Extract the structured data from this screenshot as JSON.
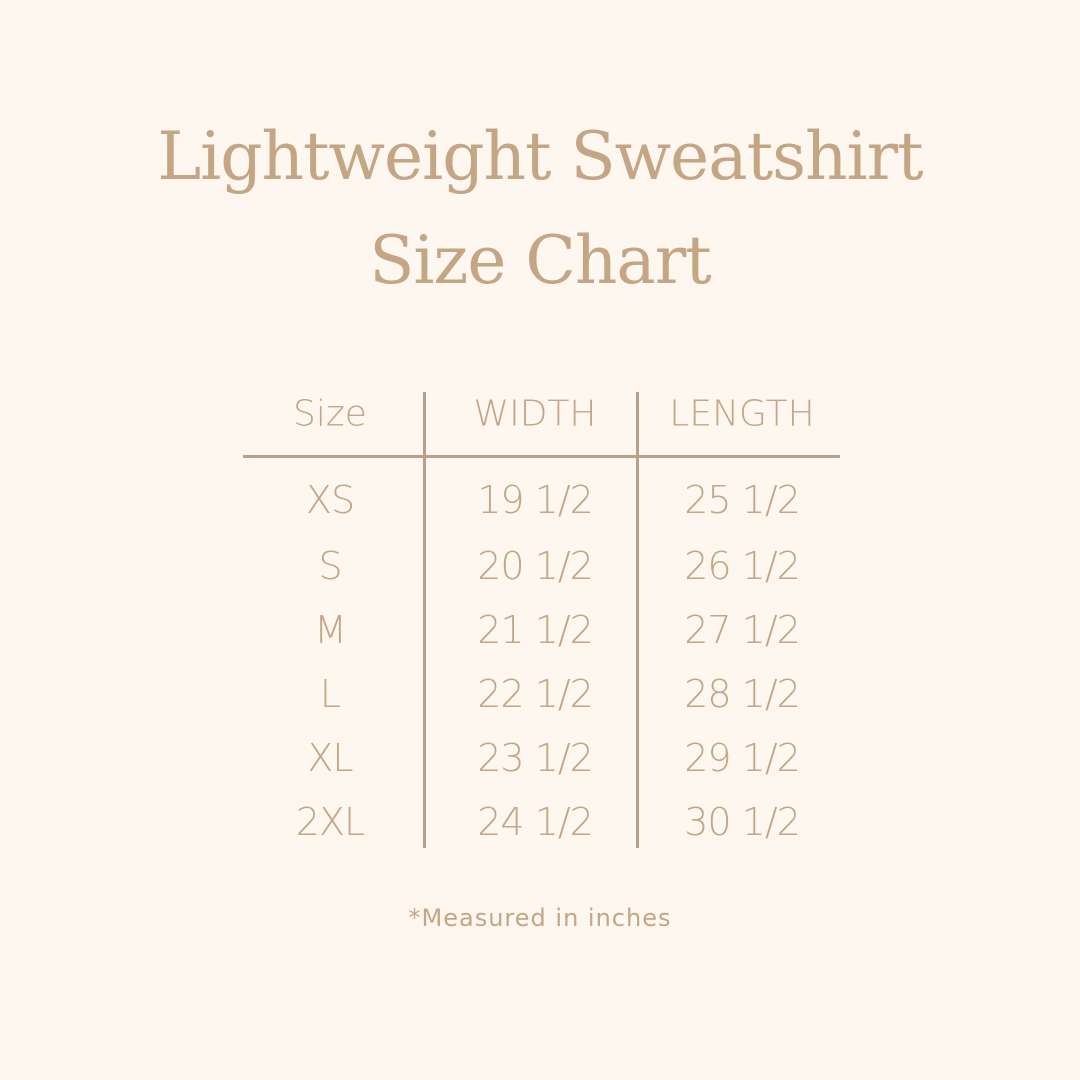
{
  "title": {
    "line1": "Lightweight Sweatshirt",
    "line2": "Size Chart"
  },
  "table": {
    "headers": [
      "Size",
      "WIDTH",
      "LENGTH"
    ],
    "rows": [
      [
        "XS",
        "19 1/2",
        "25 1/2"
      ],
      [
        "S",
        "20 1/2",
        "26 1/2"
      ],
      [
        "M",
        "21 1/2",
        "27 1/2"
      ],
      [
        "L",
        "22 1/2",
        "28 1/2"
      ],
      [
        "XL",
        "23 1/2",
        "29 1/2"
      ],
      [
        "2XL",
        "24 1/2",
        "30 1/2"
      ]
    ]
  },
  "note": "*Measured in inches",
  "colors": {
    "background": "#fdf7ef",
    "text": "#c4a584",
    "lines": "#b8a18c"
  }
}
